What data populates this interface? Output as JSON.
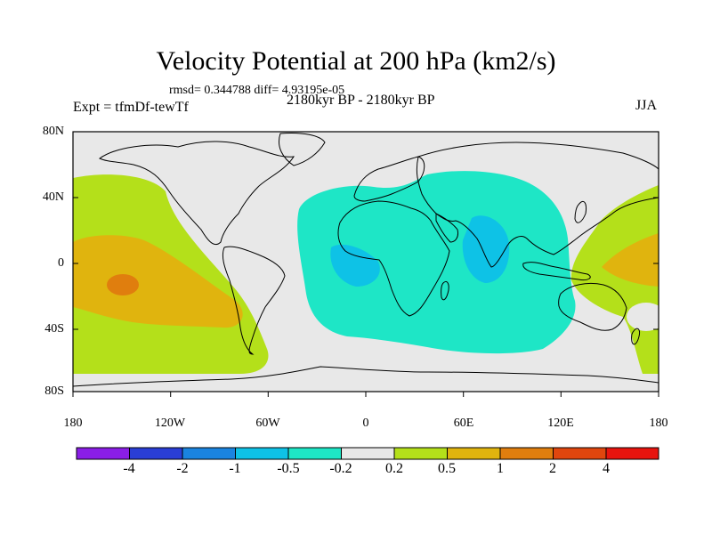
{
  "title": "Velocity Potential at 200 hPa (km2/s)",
  "stats": "rmsd= 0.344788 diff= 4.93195e-05",
  "experiment": "Expt = tfmDf-tewTf",
  "period": "2180kyr BP - 2180kyr BP",
  "season": "JJA",
  "y_axis": {
    "ticks": [
      "80N",
      "40N",
      "0",
      "40S",
      "80S"
    ]
  },
  "x_axis": {
    "ticks": [
      "180",
      "120W",
      "60W",
      "0",
      "60E",
      "120E",
      "180"
    ]
  },
  "colorbar": {
    "labels": [
      "-4",
      "-2",
      "-1",
      "-0.5",
      "-0.2",
      "0.2",
      "0.5",
      "1",
      "2",
      "4"
    ],
    "colors": [
      "#8a1ee6",
      "#2a3ed6",
      "#1a84e0",
      "#0ec2e6",
      "#1ee6c6",
      "#e8e8e8",
      "#b4e01a",
      "#e0b40e",
      "#e07e0e",
      "#e0460e",
      "#e8140e"
    ]
  },
  "map": {
    "background_color": "#e8e8e8",
    "regions": [
      {
        "name": "pacific-positive",
        "class": "0.2 to 0.5"
      },
      {
        "name": "pacific-center",
        "class": "0.5 to 1"
      },
      {
        "name": "pacific-core",
        "class": "1 to 2"
      },
      {
        "name": "indian-ocean-negative",
        "class": "-0.5 to -0.2"
      },
      {
        "name": "indian-ocean-core",
        "class": "-1 to -0.5"
      },
      {
        "name": "west-pacific-positive",
        "class": "0.2 to 0.5"
      },
      {
        "name": "west-pacific-center",
        "class": "0.5 to 1"
      }
    ]
  }
}
